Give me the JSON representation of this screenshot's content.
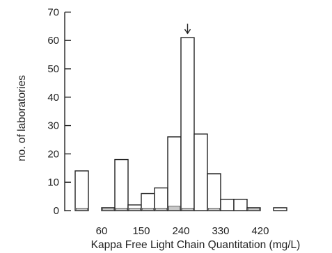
{
  "chart_data": {
    "type": "bar",
    "xlabel": "Kappa Free Light Chain Quantitation (mg/L)",
    "ylabel": "no. of laboratories",
    "ylim": [
      0,
      70
    ],
    "yticks": [
      0,
      10,
      20,
      30,
      40,
      50,
      60,
      70
    ],
    "xtick_labels": [
      "60",
      "150",
      "240",
      "330",
      "420"
    ],
    "xtick_values": [
      60,
      150,
      240,
      330,
      420
    ],
    "bin_width": 30,
    "bins": [
      {
        "x0": 0,
        "x1": 30,
        "value": 14,
        "inner": 1
      },
      {
        "x0": 60,
        "x1": 90,
        "value": 1,
        "inner": 1
      },
      {
        "x0": 90,
        "x1": 120,
        "value": 18,
        "inner": 1
      },
      {
        "x0": 120,
        "x1": 150,
        "value": 2,
        "inner": 1
      },
      {
        "x0": 150,
        "x1": 180,
        "value": 6,
        "inner": 1
      },
      {
        "x0": 180,
        "x1": 210,
        "value": 8,
        "inner": 1
      },
      {
        "x0": 210,
        "x1": 240,
        "value": 26,
        "inner": 2
      },
      {
        "x0": 240,
        "x1": 270,
        "value": 61,
        "inner": 1
      },
      {
        "x0": 270,
        "x1": 300,
        "value": 27,
        "inner": 0
      },
      {
        "x0": 300,
        "x1": 330,
        "value": 13,
        "inner": 1
      },
      {
        "x0": 330,
        "x1": 360,
        "value": 4,
        "inner": 0
      },
      {
        "x0": 360,
        "x1": 390,
        "value": 4,
        "inner": 0
      },
      {
        "x0": 390,
        "x1": 420,
        "value": 1,
        "inner": 1
      },
      {
        "x0": 450,
        "x1": 480,
        "value": 1,
        "inner": 0
      }
    ],
    "target_marker_x": 255
  }
}
